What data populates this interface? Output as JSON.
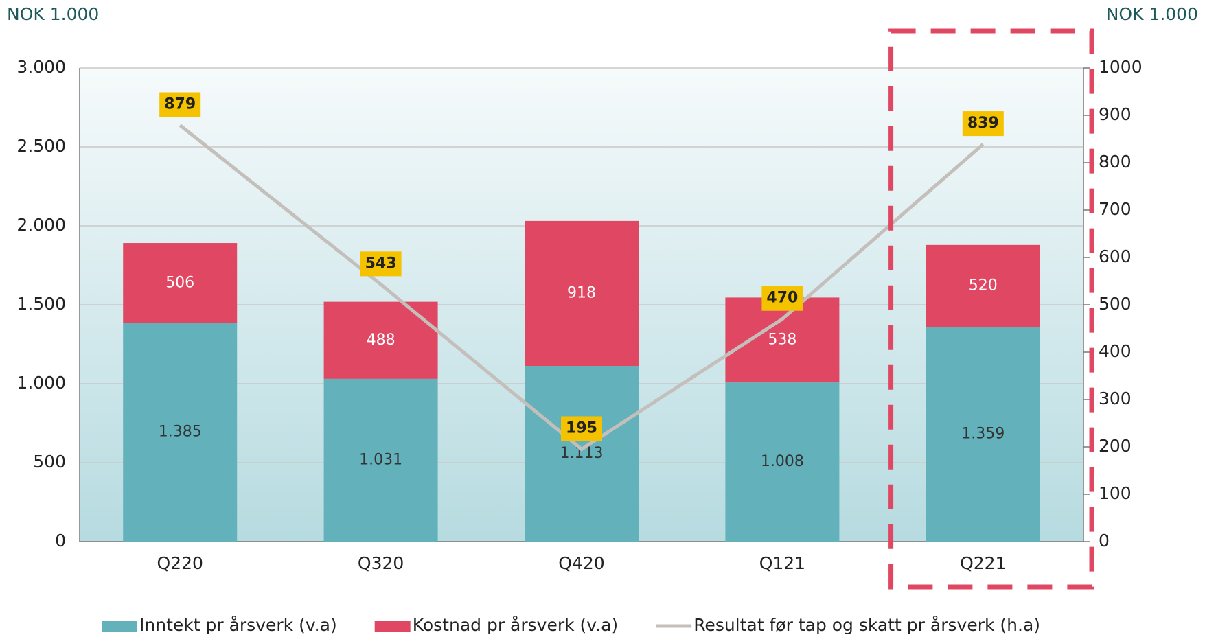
{
  "chart_data": {
    "type": "bar",
    "stacked": true,
    "y_label": "NOK 1.000",
    "y2_label": "NOK 1.000",
    "categories": [
      "Q220",
      "Q320",
      "Q420",
      "Q121",
      "Q221"
    ],
    "series": [
      {
        "name": "Inntekt pr årsverk (v.a)",
        "color": "#63b1bb",
        "values": [
          1385,
          1031,
          1113,
          1008,
          1359
        ],
        "value_labels": [
          "1.385",
          "1.031",
          "1.113",
          "1.008",
          "1.359"
        ]
      },
      {
        "name": "Kostnad pr årsverk (v.a)",
        "color": "#e04763",
        "values": [
          506,
          488,
          918,
          538,
          520
        ]
      },
      {
        "name": "Resultat før tap og skatt pr årsverk (h.a)",
        "color": "#c4bfbb",
        "type": "line",
        "axis": "y2",
        "values": [
          879,
          543,
          195,
          470,
          839
        ]
      }
    ],
    "ylim": [
      0,
      3000
    ],
    "yticks": [
      0,
      500,
      {
        "value": 1000,
        "label": "1.000"
      },
      {
        "value": 1500,
        "label": "1.500"
      },
      {
        "value": 2000,
        "label": "2.000"
      },
      {
        "value": 2500,
        "label": "2.500"
      },
      {
        "value": 3000,
        "label": "3.000"
      }
    ],
    "y2lim": [
      0,
      1000
    ],
    "y2ticks": [
      0,
      100,
      200,
      300,
      400,
      500,
      600,
      700,
      800,
      900,
      1000
    ],
    "grid": true
  }
}
